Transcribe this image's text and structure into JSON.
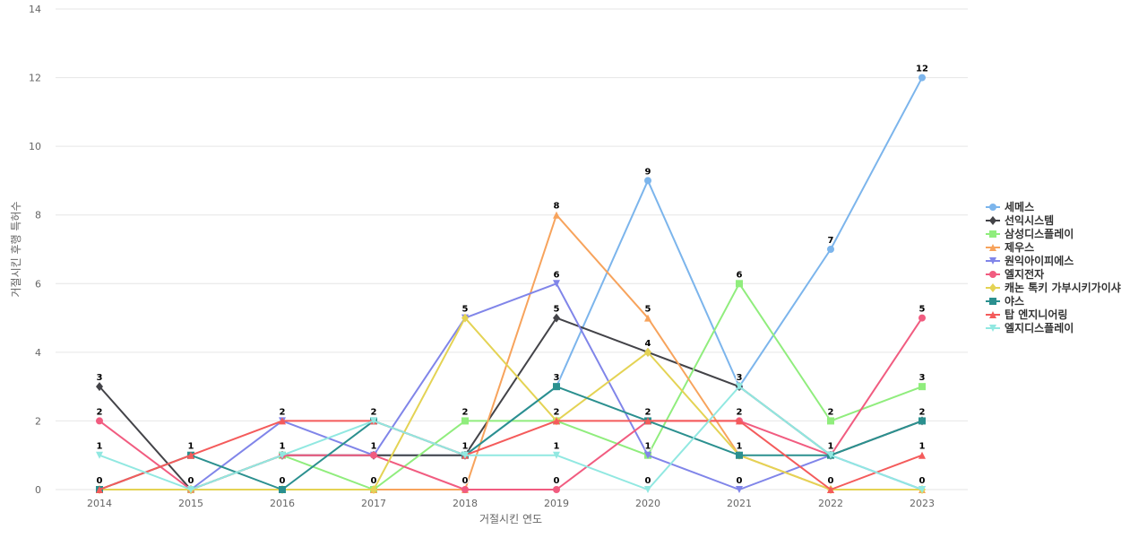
{
  "chart_data": {
    "type": "line",
    "title": "",
    "xlabel": "거절시킨 연도",
    "ylabel": "거절시킨 후행 특허수",
    "x": [
      "2014",
      "2015",
      "2016",
      "2017",
      "2018",
      "2019",
      "2020",
      "2021",
      "2022",
      "2023"
    ],
    "ylim": [
      0,
      14
    ],
    "yticks": [
      0,
      2,
      4,
      6,
      8,
      10,
      12,
      14
    ],
    "grid": true,
    "legend_position": "right",
    "series": [
      {
        "name": "세메스",
        "color": "#7cb5ec",
        "marker": "circle",
        "values": [
          0,
          0,
          1,
          1,
          1,
          3,
          9,
          3,
          7,
          12
        ]
      },
      {
        "name": "선익시스템",
        "color": "#434348",
        "marker": "diamond",
        "values": [
          3,
          0,
          1,
          1,
          1,
          5,
          4,
          3,
          1,
          2
        ]
      },
      {
        "name": "삼성디스플레이",
        "color": "#90ed7d",
        "marker": "square",
        "values": [
          0,
          0,
          1,
          0,
          2,
          2,
          1,
          6,
          2,
          3
        ]
      },
      {
        "name": "제우스",
        "color": "#f7a35c",
        "marker": "triangle",
        "values": [
          0,
          0,
          0,
          0,
          0,
          8,
          5,
          1,
          0,
          0
        ]
      },
      {
        "name": "원익아이피에스",
        "color": "#8085e9",
        "marker": "triangle-down",
        "values": [
          0,
          0,
          2,
          1,
          5,
          6,
          1,
          0,
          1,
          0
        ]
      },
      {
        "name": "엘지전자",
        "color": "#f15c80",
        "marker": "circle",
        "values": [
          2,
          0,
          1,
          1,
          0,
          0,
          2,
          2,
          1,
          5
        ]
      },
      {
        "name": "캐논 톡키 가부시키가이샤",
        "color": "#e4d354",
        "marker": "diamond",
        "values": [
          0,
          0,
          0,
          0,
          5,
          2,
          4,
          1,
          0,
          0
        ]
      },
      {
        "name": "야스",
        "color": "#2b908f",
        "marker": "square",
        "values": [
          0,
          1,
          0,
          2,
          1,
          3,
          2,
          1,
          1,
          2
        ]
      },
      {
        "name": "탑 엔지니어링",
        "color": "#f45b5b",
        "marker": "triangle",
        "values": [
          0,
          1,
          2,
          2,
          1,
          2,
          2,
          2,
          0,
          1
        ]
      },
      {
        "name": "엘지디스플레이",
        "color": "#91e8e1",
        "marker": "triangle-down",
        "values": [
          1,
          0,
          1,
          2,
          1,
          1,
          0,
          3,
          1,
          0
        ]
      }
    ],
    "data_labels": [
      {
        "x": "2014",
        "value": 3
      },
      {
        "x": "2014",
        "value": 2
      },
      {
        "x": "2014",
        "value": 1
      },
      {
        "x": "2014",
        "value": 0
      },
      {
        "x": "2015",
        "value": 1
      },
      {
        "x": "2015",
        "value": 0
      },
      {
        "x": "2016",
        "value": 2
      },
      {
        "x": "2016",
        "value": 1
      },
      {
        "x": "2016",
        "value": 0
      },
      {
        "x": "2017",
        "value": 2
      },
      {
        "x": "2017",
        "value": 1
      },
      {
        "x": "2017",
        "value": 0
      },
      {
        "x": "2018",
        "value": 5
      },
      {
        "x": "2018",
        "value": 2
      },
      {
        "x": "2018",
        "value": 1
      },
      {
        "x": "2018",
        "value": 0
      },
      {
        "x": "2019",
        "value": 8
      },
      {
        "x": "2019",
        "value": 6
      },
      {
        "x": "2019",
        "value": 5
      },
      {
        "x": "2019",
        "value": 3
      },
      {
        "x": "2019",
        "value": 2
      },
      {
        "x": "2019",
        "value": 1
      },
      {
        "x": "2019",
        "value": 0
      },
      {
        "x": "2020",
        "value": 9
      },
      {
        "x": "2020",
        "value": 5
      },
      {
        "x": "2020",
        "value": 4
      },
      {
        "x": "2020",
        "value": 2
      },
      {
        "x": "2020",
        "value": 1
      },
      {
        "x": "2020",
        "value": 0
      },
      {
        "x": "2021",
        "value": 6
      },
      {
        "x": "2021",
        "value": 3
      },
      {
        "x": "2021",
        "value": 2
      },
      {
        "x": "2021",
        "value": 1
      },
      {
        "x": "2021",
        "value": 0
      },
      {
        "x": "2022",
        "value": 7
      },
      {
        "x": "2022",
        "value": 2
      },
      {
        "x": "2022",
        "value": 1
      },
      {
        "x": "2022",
        "value": 0
      },
      {
        "x": "2023",
        "value": 12
      },
      {
        "x": "2023",
        "value": 5
      },
      {
        "x": "2023",
        "value": 3
      },
      {
        "x": "2023",
        "value": 2
      },
      {
        "x": "2023",
        "value": 1
      },
      {
        "x": "2023",
        "value": 0
      }
    ]
  }
}
